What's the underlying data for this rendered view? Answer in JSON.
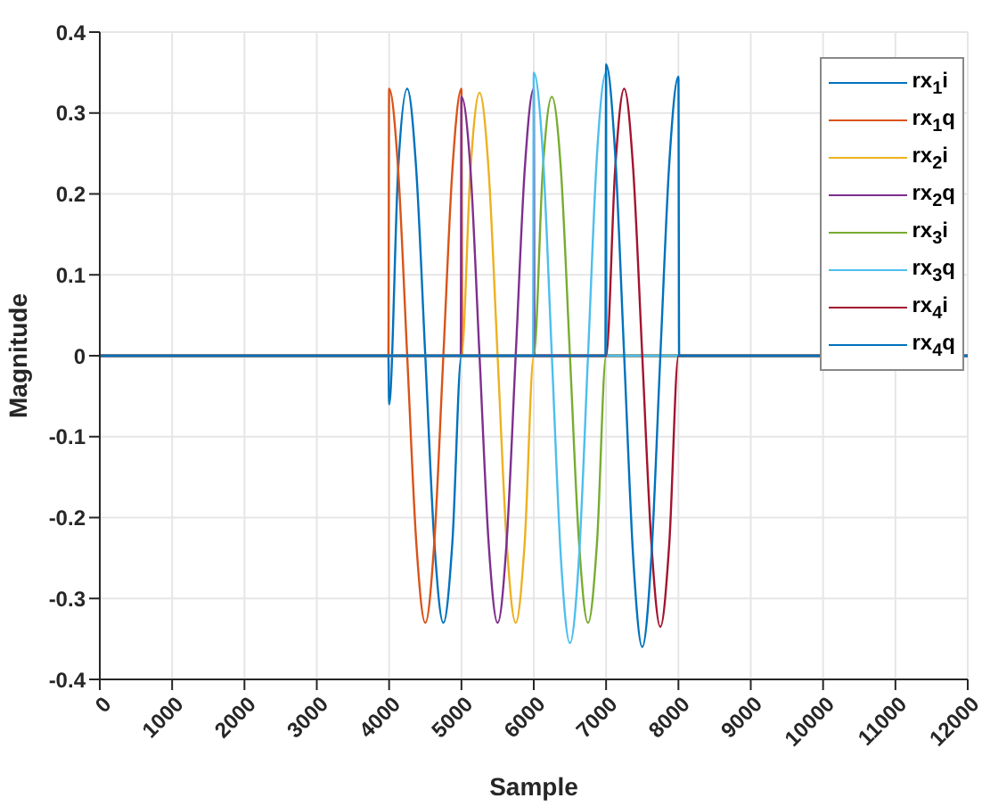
{
  "chart_data": {
    "type": "line",
    "xlabel": "Sample",
    "ylabel": "Magnitude",
    "xlim": [
      0,
      12000
    ],
    "ylim": [
      -0.4,
      0.4
    ],
    "xticks": [
      0,
      1000,
      2000,
      3000,
      4000,
      5000,
      6000,
      7000,
      8000,
      9000,
      10000,
      11000,
      12000
    ],
    "yticks": [
      -0.4,
      -0.3,
      -0.2,
      -0.1,
      0,
      0.1,
      0.2,
      0.3,
      0.4
    ],
    "grid": true,
    "legend": "top right",
    "marker": "none",
    "line_style": "solid",
    "series": [
      {
        "name": "rx$_{1}$i",
        "color": "#0072bd",
        "x": [
          0,
          3990,
          4000,
          4125,
          4250,
          4375,
          4500,
          4625,
          4750,
          4875,
          5000,
          5010,
          12000
        ],
        "values": [
          0,
          0,
          -0.06,
          0.23,
          0.33,
          0.23,
          0,
          -0.23,
          -0.33,
          -0.23,
          0,
          0,
          0
        ]
      },
      {
        "name": "rx$_{1}$q",
        "color": "#d95319",
        "x": [
          0,
          3990,
          4000,
          4125,
          4250,
          4375,
          4500,
          4625,
          4750,
          4875,
          5000,
          5010,
          12000
        ],
        "values": [
          0,
          0,
          0.33,
          0.23,
          0,
          -0.23,
          -0.33,
          -0.23,
          0,
          0.23,
          0.33,
          0,
          0
        ]
      },
      {
        "name": "rx$_{2}$i",
        "color": "#edb120",
        "x": [
          0,
          4990,
          5000,
          5125,
          5250,
          5375,
          5500,
          5625,
          5750,
          5875,
          6000,
          6010,
          12000
        ],
        "values": [
          0,
          0,
          0,
          0.23,
          0.325,
          0.23,
          0,
          -0.23,
          -0.33,
          -0.23,
          0,
          0,
          0
        ]
      },
      {
        "name": "rx$_{2}$q",
        "color": "#7e2f8e",
        "x": [
          0,
          4990,
          5000,
          5125,
          5250,
          5375,
          5500,
          5625,
          5750,
          5875,
          6000,
          6010,
          12000
        ],
        "values": [
          0,
          0,
          0.32,
          0.23,
          0,
          -0.23,
          -0.33,
          -0.23,
          0,
          0.23,
          0.33,
          0,
          0
        ]
      },
      {
        "name": "rx$_{3}$i",
        "color": "#77ac30",
        "x": [
          0,
          5990,
          6000,
          6125,
          6250,
          6375,
          6500,
          6625,
          6750,
          6875,
          7000,
          7010,
          12000
        ],
        "values": [
          0,
          0,
          0,
          0.23,
          0.32,
          0.23,
          0,
          -0.23,
          -0.33,
          -0.23,
          0,
          0,
          0
        ]
      },
      {
        "name": "rx$_{3}$q",
        "color": "#4dbeee",
        "x": [
          0,
          5990,
          6000,
          6125,
          6250,
          6375,
          6500,
          6625,
          6750,
          6875,
          7000,
          7010,
          12000
        ],
        "values": [
          0,
          0,
          0.35,
          0.25,
          0,
          -0.25,
          -0.355,
          -0.25,
          0,
          0.25,
          0.35,
          0,
          0
        ]
      },
      {
        "name": "rx$_{4}$i",
        "color": "#a2142f",
        "x": [
          0,
          6990,
          7000,
          7125,
          7250,
          7375,
          7500,
          7625,
          7750,
          7875,
          8000,
          8010,
          12000
        ],
        "values": [
          0,
          0,
          0,
          0.23,
          0.33,
          0.23,
          0,
          -0.23,
          -0.335,
          -0.23,
          0,
          0,
          0
        ]
      },
      {
        "name": "rx$_{4}$q",
        "color": "#0072bd",
        "x": [
          0,
          6990,
          7000,
          7125,
          7250,
          7375,
          7500,
          7625,
          7750,
          7875,
          8000,
          8010,
          12000
        ],
        "values": [
          0,
          0,
          0.36,
          0.25,
          0,
          -0.25,
          -0.36,
          -0.25,
          0,
          0.24,
          0.345,
          0,
          0
        ]
      }
    ]
  }
}
